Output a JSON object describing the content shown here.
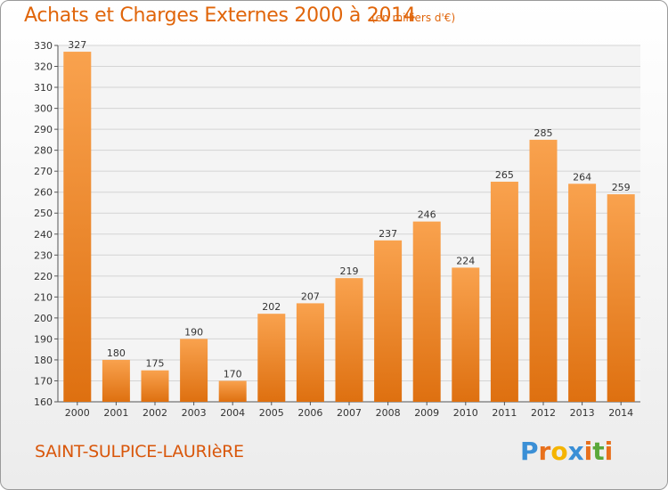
{
  "header": {
    "title": "Achats et Charges Externes 2000 à 2014",
    "unit": "(en milliers d'€)"
  },
  "footer": {
    "commune": "SAINT-SULPICE-LAURIèRE",
    "logo_letters": [
      "P",
      "r",
      "o",
      "x",
      "i",
      "t",
      "i"
    ]
  },
  "colors": {
    "title": "#e0650a",
    "bar_top": "#f9a24e",
    "bar_bottom": "#de7010",
    "grid": "#d4d4d4",
    "logo": [
      "#3a8fd6",
      "#e8701c",
      "#f5b400",
      "#3a8fd6",
      "#e8701c",
      "#5aa83a",
      "#e8701c"
    ]
  },
  "chart_data": {
    "type": "bar",
    "title": "Achats et Charges Externes 2000 à 2014",
    "subtitle": "(en milliers d'€)",
    "categories": [
      "2000",
      "2001",
      "2002",
      "2003",
      "2004",
      "2005",
      "2006",
      "2007",
      "2008",
      "2009",
      "2010",
      "2011",
      "2012",
      "2013",
      "2014"
    ],
    "values": [
      327,
      180,
      175,
      190,
      170,
      202,
      207,
      219,
      237,
      246,
      224,
      265,
      285,
      264,
      259
    ],
    "ylim": [
      160,
      330
    ],
    "yticks": [
      160,
      170,
      180,
      190,
      200,
      210,
      220,
      230,
      240,
      250,
      260,
      270,
      280,
      290,
      300,
      310,
      320,
      330
    ],
    "grid": true,
    "legend": "none",
    "xlabel": "",
    "ylabel": ""
  }
}
